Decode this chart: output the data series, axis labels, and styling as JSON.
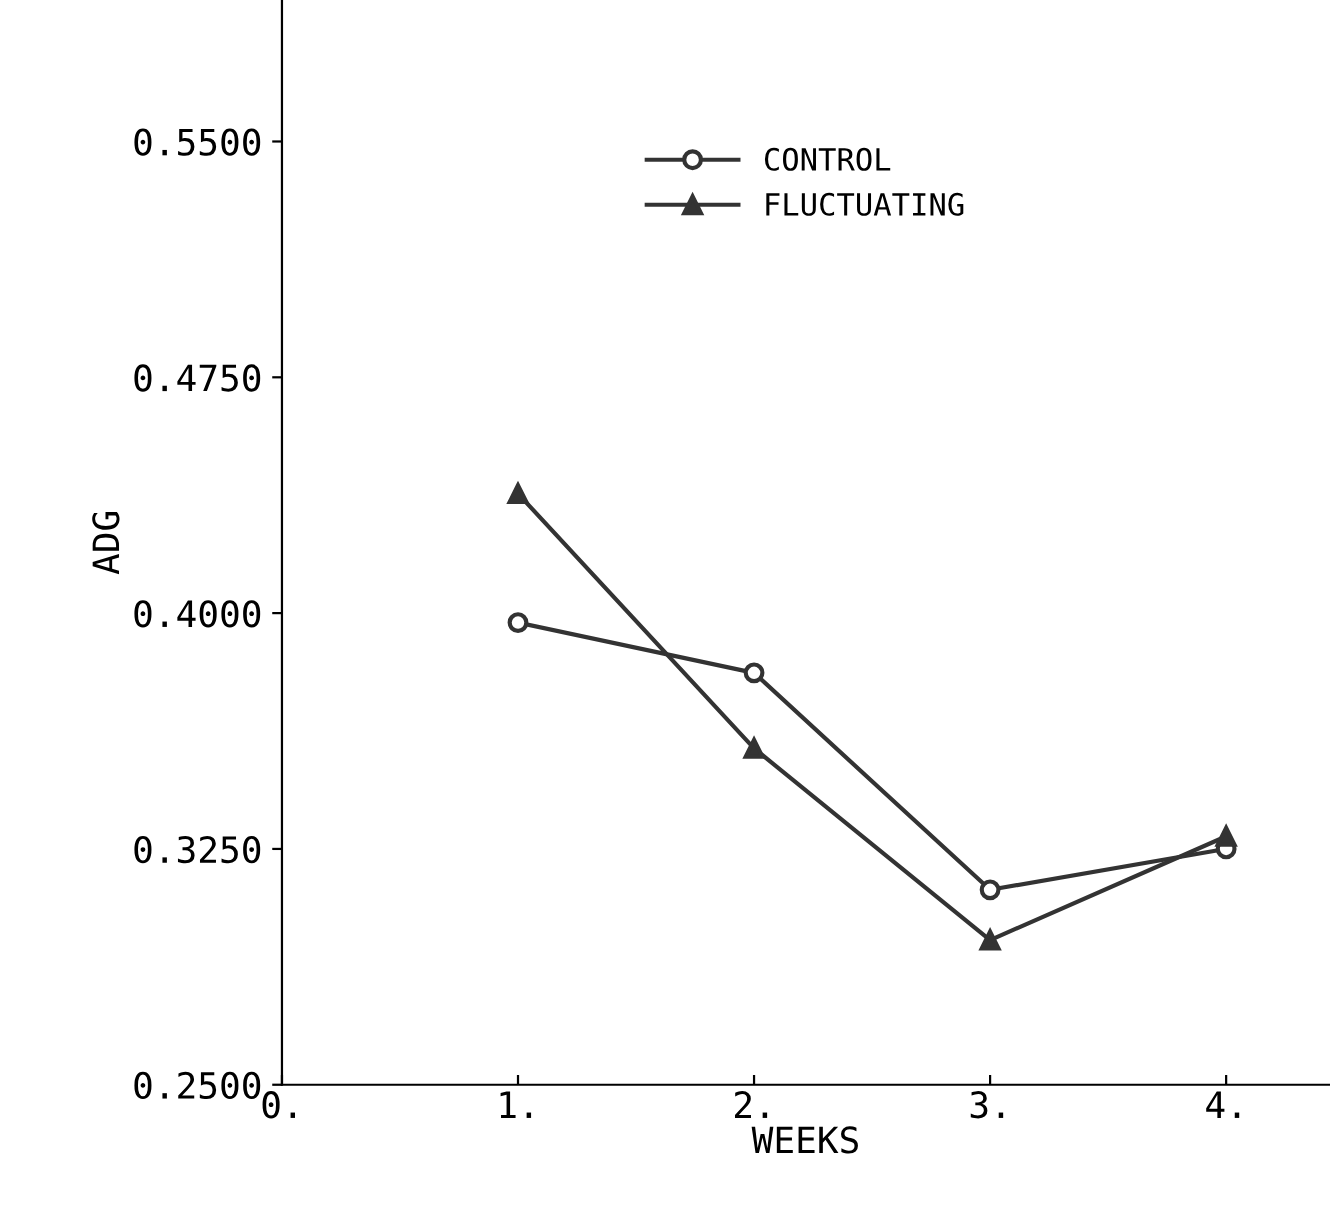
{
  "chart_data": {
    "type": "line",
    "xlabel": "WEEKS",
    "ylabel": "ADG",
    "x": [
      1,
      2,
      3,
      4
    ],
    "series": [
      {
        "name": "CONTROL",
        "color": "#333333",
        "marker": "circle",
        "values": [
          0.397,
          0.381,
          0.312,
          0.325
        ]
      },
      {
        "name": "FLUCTUATING",
        "color": "#333333",
        "marker": "triangle",
        "values": [
          0.438,
          0.357,
          0.296,
          0.329
        ]
      }
    ],
    "xlim": [
      0,
      4.44
    ],
    "ylim": [
      0.25,
      0.595
    ],
    "xticks": [
      {
        "value": 0,
        "label": "0."
      },
      {
        "value": 1,
        "label": "1."
      },
      {
        "value": 2,
        "label": "2."
      },
      {
        "value": 3,
        "label": "3."
      },
      {
        "value": 4,
        "label": "4."
      }
    ],
    "yticks": [
      {
        "value": 0.25,
        "label": "0.2500"
      },
      {
        "value": 0.325,
        "label": "0.3250"
      },
      {
        "value": 0.4,
        "label": "0.4000"
      },
      {
        "value": 0.475,
        "label": "0.4750"
      },
      {
        "value": 0.55,
        "label": "0.5500"
      }
    ],
    "grid": false,
    "legend": "top",
    "line_style": "solid"
  }
}
